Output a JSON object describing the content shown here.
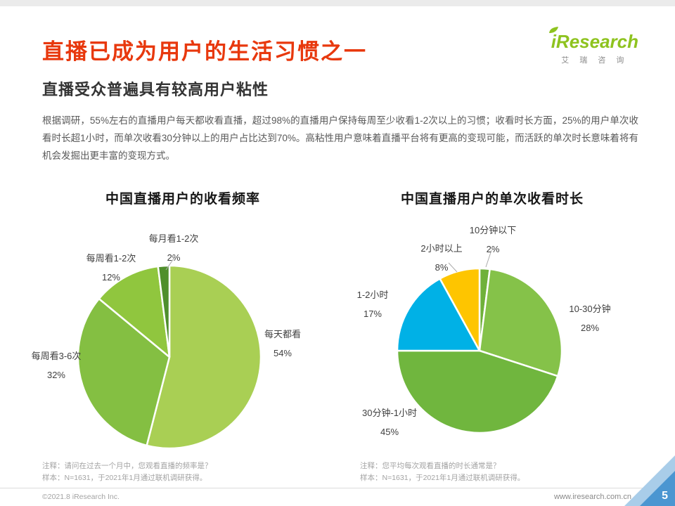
{
  "colors": {
    "title_red": "#e8380d",
    "logo_green": "#8ec31f",
    "corner_blue": "#4b96d1"
  },
  "header": {
    "title": "直播已成为用户的生活习惯之一",
    "subtitle": "直播受众普遍具有较高用户粘性",
    "logo": {
      "brand": "iResearch",
      "brand_cn": "艾 瑞 咨 询"
    }
  },
  "body_text": "根据调研，55%左右的直播用户每天都收看直播，超过98%的直播用户保持每周至少收看1-2次以上的习惯；收看时长方面，25%的用户单次收看时长超1小时，而单次收看30分钟以上的用户占比达到70%。高粘性用户意味着直播平台将有更高的变现可能，而活跃的单次时长意味着将有机会发掘出更丰富的变现方式。",
  "chart_data": [
    {
      "type": "pie",
      "title": "中国直播用户的收看频率",
      "legend_position": "outside-labels",
      "slices": [
        {
          "label": "每天都看",
          "value": 54,
          "pct": "54%",
          "color": "#a9cf54"
        },
        {
          "label": "每周看3-6次",
          "value": 32,
          "pct": "32%",
          "color": "#84bf42"
        },
        {
          "label": "每周看1-2次",
          "value": 12,
          "pct": "12%",
          "color": "#90c63e"
        },
        {
          "label": "每月看1-2次",
          "value": 2,
          "pct": "2%",
          "color": "#4f8f2c"
        }
      ],
      "note": "注释：请问在过去一个月中，您观看直播的频率是？",
      "sample": "样本：N=1631，于2021年1月通过联机调研获得。"
    },
    {
      "type": "pie",
      "title": "中国直播用户的单次收看时长",
      "legend_position": "outside-labels",
      "slices": [
        {
          "label": "10分钟以下",
          "value": 2,
          "pct": "2%",
          "color": "#6fb13a"
        },
        {
          "label": "10-30分钟",
          "value": 28,
          "pct": "28%",
          "color": "#85c249"
        },
        {
          "label": "30分钟-1小时",
          "value": 45,
          "pct": "45%",
          "color": "#70b63e"
        },
        {
          "label": "1-2小时",
          "value": 17,
          "pct": "17%",
          "color": "#00b1e6"
        },
        {
          "label": "2小时以上",
          "value": 8,
          "pct": "8%",
          "color": "#fec500"
        }
      ],
      "note": "注释：您平均每次观看直播的时长通常是？",
      "sample": "样本：N=1631，于2021年1月通过联机调研获得。"
    }
  ],
  "footer": {
    "copyright": "©2021.8 iResearch Inc.",
    "website": "www.iresearch.com.cn",
    "page_number": "5"
  }
}
